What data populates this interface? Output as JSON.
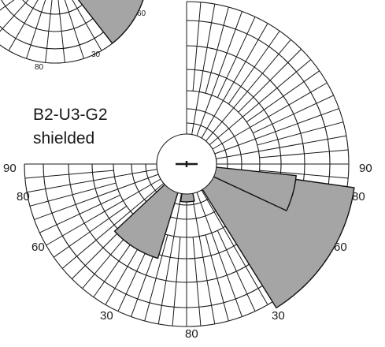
{
  "figure": {
    "title_line1": "B2-U3-G2",
    "title_line2": "shielded"
  },
  "main_diagram": {
    "labels": {
      "left_90": "90",
      "left_80": "80",
      "left_60": "60",
      "bottom_left_30": "30",
      "bottom_80": "80",
      "bottom_right_30": "30",
      "right_60": "60",
      "right_80": "80",
      "right_90": "90"
    }
  },
  "inset_diagram": {
    "labels": {
      "label_60": "60",
      "label_30": "30",
      "label_80": "80"
    }
  },
  "colors": {
    "sector_fill": "#a5a5a5",
    "line": "#1a1a1a",
    "background": "#ffffff"
  }
}
